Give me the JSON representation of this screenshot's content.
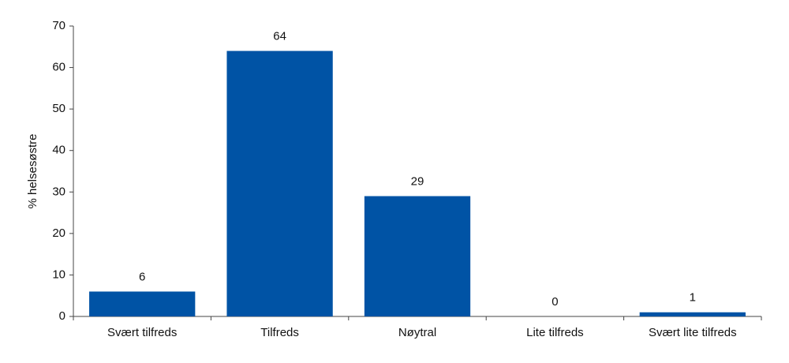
{
  "chart_data": {
    "type": "bar",
    "y_label": "% helsesøstre",
    "categories": [
      "Svært tilfreds",
      "Tilfreds",
      "Nøytral",
      "Lite tilfreds",
      "Svært lite tilfreds"
    ],
    "values": [
      6,
      64,
      29,
      0,
      1
    ],
    "color": "#0053a5",
    "ylim": [
      0,
      70
    ],
    "yticks": [
      0,
      10,
      20,
      30,
      40,
      50,
      60,
      70
    ],
    "grid": false,
    "data_labels": true
  }
}
